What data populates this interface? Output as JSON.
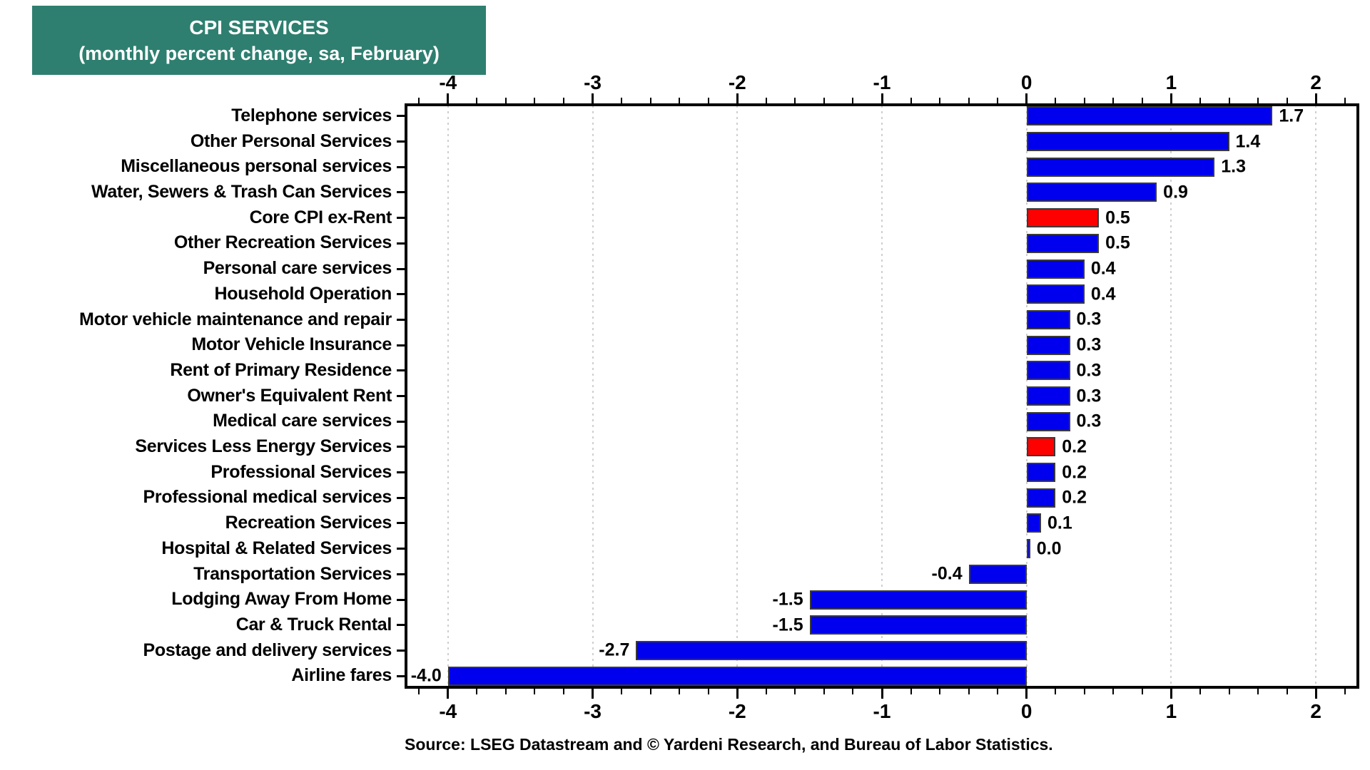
{
  "header": {
    "title_line1": "CPI SERVICES",
    "title_line2": "(monthly percent change, sa, February)",
    "box_color": "#2E7F6F",
    "text_color": "#FFFFFF"
  },
  "chart_data": {
    "type": "bar",
    "orientation": "horizontal",
    "title": "CPI SERVICES",
    "subtitle": "(monthly percent change, sa, February)",
    "categories": [
      "Telephone services",
      "Other Personal Services",
      "Miscellaneous personal services",
      "Water, Sewers & Trash Can Services",
      "Core CPI ex-Rent",
      "Other Recreation Services",
      "Personal care services",
      "Household Operation",
      "Motor vehicle maintenance and repair",
      "Motor Vehicle Insurance",
      "Rent of Primary Residence",
      "Owner's Equivalent Rent",
      "Medical care services",
      "Services Less Energy Services",
      "Professional Services",
      "Professional medical services",
      "Recreation Services",
      "Hospital & Related Services",
      "Transportation Services",
      "Lodging Away From Home",
      "Car & Truck Rental",
      "Postage and delivery services",
      "Airline fares"
    ],
    "values": [
      1.7,
      1.4,
      1.3,
      0.9,
      0.5,
      0.5,
      0.4,
      0.4,
      0.3,
      0.3,
      0.3,
      0.3,
      0.3,
      0.2,
      0.2,
      0.2,
      0.1,
      0.0,
      -0.4,
      -1.5,
      -1.5,
      -2.7,
      -4.0
    ],
    "value_labels": [
      "1.7",
      "1.4",
      "1.3",
      "0.9",
      "0.5",
      "0.5",
      "0.4",
      "0.4",
      "0.3",
      "0.3",
      "0.3",
      "0.3",
      "0.3",
      "0.2",
      "0.2",
      "0.2",
      "0.1",
      "0.0",
      "-0.4",
      "-1.5",
      "-1.5",
      "-2.7",
      "-4.0"
    ],
    "bar_default_color": "#0000EE",
    "highlight_color": "#FF0000",
    "highlight_indices": [
      4,
      13
    ],
    "highlighted_categories": [
      "Core CPI ex-Rent",
      "Services Less Energy Services"
    ],
    "xlim": [
      -4.3,
      2.3
    ],
    "x_major_ticks": [
      -4,
      -3,
      -2,
      -1,
      0,
      1,
      2
    ],
    "x_major_tick_labels": [
      "-4",
      "-3",
      "-2",
      "-1",
      "0",
      "1",
      "2"
    ],
    "x_minor_tick_step": 0.2,
    "grid": {
      "style": "dotted",
      "color": "#CFCFCF",
      "at": [
        -4,
        -3,
        -2,
        -1,
        0,
        1,
        2
      ]
    },
    "axis_sides": [
      "top",
      "bottom"
    ],
    "xlabel": "",
    "ylabel": ""
  },
  "source": {
    "text": "Source: LSEG Datastream and © Yardeni Research, and Bureau of Labor Statistics."
  }
}
